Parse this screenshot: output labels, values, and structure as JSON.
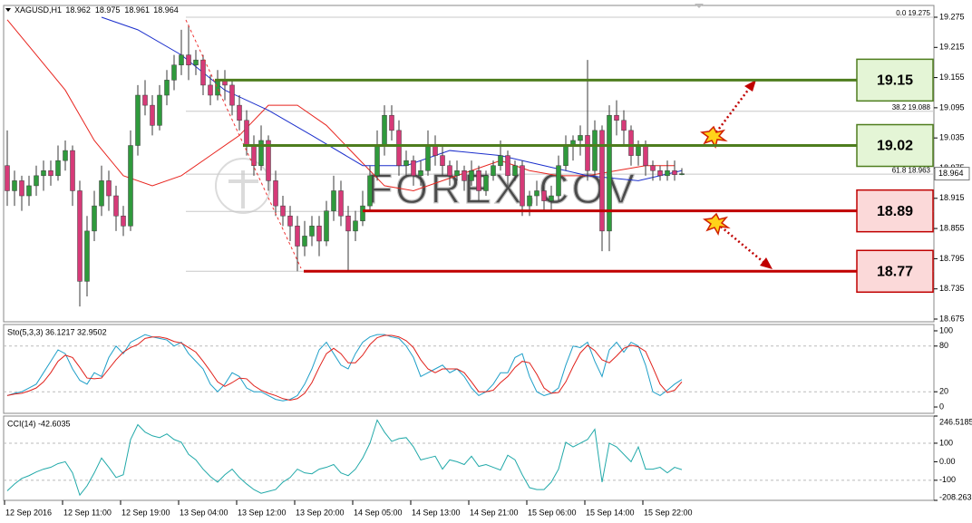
{
  "chart_data": [
    {
      "type": "candlestick",
      "symbol": "XAGUSD,H1",
      "header_values": [
        18.962,
        18.975,
        18.961,
        18.964
      ],
      "watermark": "FOREX.COV",
      "last_price": 18.964,
      "up_color": "#2f9a3c",
      "down_color": "#d63a78",
      "ylim": [
        18.6696,
        19.2984
      ],
      "yticks": [
        19.275,
        19.215,
        19.155,
        19.095,
        19.035,
        18.975,
        18.915,
        18.855,
        18.795,
        18.735,
        18.675
      ],
      "categories": [
        "12 Sep 2016",
        null,
        null,
        null,
        null,
        null,
        null,
        null,
        "12 Sep 11:00",
        null,
        null,
        null,
        null,
        null,
        null,
        null,
        "12 Sep 19:00",
        null,
        null,
        null,
        null,
        null,
        null,
        null,
        "13 Sep 04:00",
        null,
        null,
        null,
        null,
        null,
        null,
        null,
        "13 Sep 12:00",
        null,
        null,
        null,
        null,
        null,
        null,
        null,
        "13 Sep 20:00",
        null,
        null,
        null,
        null,
        null,
        null,
        null,
        "14 Sep 05:00",
        null,
        null,
        null,
        null,
        null,
        null,
        null,
        "14 Sep 13:00",
        null,
        null,
        null,
        null,
        null,
        null,
        null,
        "14 Sep 21:00",
        null,
        null,
        null,
        null,
        null,
        null,
        null,
        "15 Sep 06:00",
        null,
        null,
        null,
        null,
        null,
        null,
        null,
        "15 Sep 14:00",
        null,
        null,
        null,
        null,
        null,
        null,
        null,
        "15 Sep 22:00",
        null,
        null,
        null,
        null,
        null
      ],
      "ohlc": [
        [
          18.98,
          19.05,
          18.9,
          18.93
        ],
        [
          18.93,
          18.97,
          18.9,
          18.95
        ],
        [
          18.95,
          18.96,
          18.89,
          18.92
        ],
        [
          18.92,
          18.96,
          18.9,
          18.94
        ],
        [
          18.94,
          18.98,
          18.92,
          18.96
        ],
        [
          18.96,
          18.99,
          18.93,
          18.97
        ],
        [
          18.97,
          18.99,
          18.94,
          18.96
        ],
        [
          18.96,
          19.02,
          18.95,
          18.99
        ],
        [
          18.99,
          19.03,
          18.97,
          19.01
        ],
        [
          19.01,
          19.02,
          18.9,
          18.93
        ],
        [
          18.93,
          18.95,
          18.7,
          18.75
        ],
        [
          18.75,
          18.88,
          18.72,
          18.85
        ],
        [
          18.85,
          18.93,
          18.83,
          18.9
        ],
        [
          18.9,
          18.98,
          18.88,
          18.95
        ],
        [
          18.95,
          18.97,
          18.89,
          18.92
        ],
        [
          18.92,
          18.94,
          18.85,
          18.88
        ],
        [
          18.88,
          18.9,
          18.84,
          18.86
        ],
        [
          18.86,
          19.05,
          18.85,
          19.02
        ],
        [
          19.02,
          19.14,
          19.0,
          19.12
        ],
        [
          19.12,
          19.15,
          19.08,
          19.1
        ],
        [
          19.1,
          19.12,
          19.04,
          19.06
        ],
        [
          19.06,
          19.14,
          19.05,
          19.12
        ],
        [
          19.12,
          19.17,
          19.1,
          19.15
        ],
        [
          19.15,
          19.2,
          19.13,
          19.18
        ],
        [
          19.18,
          19.25,
          19.16,
          19.2
        ],
        [
          19.2,
          19.26,
          19.15,
          19.18
        ],
        [
          19.18,
          19.21,
          19.16,
          19.19
        ],
        [
          19.19,
          19.2,
          19.12,
          19.14
        ],
        [
          19.14,
          19.16,
          19.1,
          19.12
        ],
        [
          19.12,
          19.17,
          19.11,
          19.15
        ],
        [
          19.15,
          19.17,
          19.11,
          19.14
        ],
        [
          19.14,
          19.15,
          19.08,
          19.1
        ],
        [
          19.1,
          19.12,
          19.05,
          19.07
        ],
        [
          19.07,
          19.09,
          19.0,
          19.02
        ],
        [
          19.02,
          19.04,
          18.96,
          18.98
        ],
        [
          18.98,
          19.06,
          18.97,
          19.03
        ],
        [
          19.03,
          19.04,
          18.93,
          18.95
        ],
        [
          18.95,
          18.97,
          18.88,
          18.9
        ],
        [
          18.9,
          18.92,
          18.86,
          18.88
        ],
        [
          18.88,
          18.9,
          18.83,
          18.86
        ],
        [
          18.86,
          18.88,
          18.77,
          18.82
        ],
        [
          18.82,
          18.87,
          18.8,
          18.84
        ],
        [
          18.84,
          18.88,
          18.82,
          18.86
        ],
        [
          18.86,
          18.88,
          18.8,
          18.83
        ],
        [
          18.83,
          18.91,
          18.82,
          18.89
        ],
        [
          18.89,
          18.96,
          18.87,
          18.93
        ],
        [
          18.93,
          18.95,
          18.86,
          18.88
        ],
        [
          18.88,
          18.9,
          18.77,
          18.85
        ],
        [
          18.85,
          18.89,
          18.83,
          18.87
        ],
        [
          18.87,
          18.93,
          18.86,
          18.9
        ],
        [
          18.9,
          18.98,
          18.89,
          18.96
        ],
        [
          18.96,
          19.05,
          18.95,
          19.02
        ],
        [
          19.02,
          19.1,
          19.0,
          19.08
        ],
        [
          19.08,
          19.1,
          19.03,
          19.05
        ],
        [
          19.05,
          19.07,
          18.96,
          18.98
        ],
        [
          18.98,
          19.01,
          18.96,
          18.99
        ],
        [
          18.99,
          19.0,
          18.94,
          18.96
        ],
        [
          18.96,
          18.99,
          18.94,
          18.97
        ],
        [
          18.97,
          19.05,
          18.96,
          19.02
        ],
        [
          19.02,
          19.04,
          18.98,
          19.0
        ],
        [
          19.0,
          19.02,
          18.96,
          18.98
        ],
        [
          18.98,
          18.99,
          18.94,
          18.96
        ],
        [
          18.96,
          18.99,
          18.95,
          18.97
        ],
        [
          18.97,
          18.98,
          18.93,
          18.95
        ],
        [
          18.95,
          18.99,
          18.94,
          18.97
        ],
        [
          18.97,
          18.98,
          18.91,
          18.93
        ],
        [
          18.93,
          18.97,
          18.92,
          18.96
        ],
        [
          18.96,
          18.99,
          18.95,
          18.98
        ],
        [
          18.98,
          19.03,
          18.97,
          19.0
        ],
        [
          19.0,
          19.01,
          18.94,
          18.96
        ],
        [
          18.96,
          18.99,
          18.95,
          18.98
        ],
        [
          18.98,
          18.99,
          18.88,
          18.9
        ],
        [
          18.9,
          18.93,
          18.88,
          18.92
        ],
        [
          18.92,
          18.95,
          18.9,
          18.93
        ],
        [
          18.93,
          18.94,
          18.89,
          18.91
        ],
        [
          18.91,
          18.94,
          18.89,
          18.92
        ],
        [
          18.92,
          19.0,
          18.91,
          18.98
        ],
        [
          18.98,
          19.04,
          18.97,
          19.02
        ],
        [
          19.02,
          19.04,
          18.99,
          19.03
        ],
        [
          19.03,
          19.06,
          19.0,
          19.04
        ],
        [
          19.04,
          19.19,
          18.95,
          18.97
        ],
        [
          18.97,
          19.07,
          18.96,
          19.05
        ],
        [
          19.05,
          19.06,
          18.81,
          18.85
        ],
        [
          18.85,
          19.1,
          18.81,
          19.08
        ],
        [
          19.08,
          19.11,
          19.04,
          19.07
        ],
        [
          19.07,
          19.09,
          19.02,
          19.05
        ],
        [
          19.05,
          19.06,
          18.98,
          19.0
        ],
        [
          19.0,
          19.03,
          18.98,
          19.02
        ],
        [
          19.02,
          19.03,
          18.96,
          18.98
        ],
        [
          18.98,
          18.99,
          18.95,
          18.97
        ],
        [
          18.97,
          18.98,
          18.95,
          18.96
        ],
        [
          18.96,
          18.99,
          18.95,
          18.97
        ],
        [
          18.97,
          18.99,
          18.95,
          18.962
        ],
        [
          18.962,
          18.975,
          18.961,
          18.964
        ]
      ],
      "moving_averages": [
        {
          "color": "#e8251f",
          "x": [
            0,
            4,
            8,
            12,
            16,
            20,
            24,
            28,
            32,
            36,
            40,
            44,
            48,
            52,
            56,
            60,
            64,
            68,
            72,
            76,
            80,
            84,
            88,
            92
          ],
          "values": [
            19.27,
            19.2,
            19.13,
            19.03,
            18.96,
            18.94,
            18.96,
            19.0,
            19.04,
            19.1,
            19.1,
            19.06,
            19.0,
            18.94,
            18.93,
            18.95,
            18.97,
            18.99,
            18.97,
            18.96,
            18.96,
            18.97,
            18.98,
            18.98
          ]
        },
        {
          "color": "#1a2ecc",
          "x": [
            13,
            18,
            24,
            30,
            36,
            42,
            49,
            55,
            61,
            68,
            74,
            80,
            87,
            93
          ],
          "values": [
            19.275,
            19.25,
            19.2,
            19.13,
            19.09,
            19.04,
            18.98,
            18.98,
            19.01,
            19.0,
            18.98,
            18.96,
            18.95,
            18.97
          ]
        }
      ],
      "fib_levels": [
        {
          "label": "0.0  19.275",
          "value": 19.275
        },
        {
          "label": "38.2  19.088",
          "value": 19.088
        },
        {
          "label": "61.8  18.963",
          "value": 18.963
        }
      ],
      "fib_lines_unlabeled": [
        18.889,
        18.77
      ],
      "levels": [
        {
          "value": 19.15,
          "color": "#4e7d1e",
          "fill": "#e4f5d6"
        },
        {
          "value": 19.02,
          "color": "#4e7d1e",
          "fill": "#e4f5d6"
        },
        {
          "value": 18.89,
          "color": "#c00000",
          "fill": "#fbd9d9"
        },
        {
          "value": 18.77,
          "color": "#c00000",
          "fill": "#fbd9d9"
        }
      ]
    },
    {
      "type": "line",
      "title": "Sto(5,3,3) 36.1217 32.9502",
      "ylim": [
        -8.3,
        108.3
      ],
      "yticks": [
        100,
        80,
        20,
        0
      ],
      "levels": [
        80,
        20
      ],
      "series": [
        {
          "color": "#1f9fc8",
          "values": [
            15,
            18,
            20,
            25,
            30,
            45,
            60,
            75,
            70,
            50,
            35,
            30,
            45,
            40,
            65,
            80,
            70,
            85,
            90,
            95,
            92,
            90,
            88,
            80,
            85,
            70,
            60,
            50,
            30,
            20,
            30,
            45,
            40,
            25,
            20,
            20,
            15,
            10,
            8,
            10,
            15,
            30,
            50,
            75,
            85,
            70,
            55,
            50,
            70,
            85,
            92,
            95,
            95,
            92,
            90,
            80,
            65,
            40,
            45,
            50,
            55,
            45,
            50,
            40,
            25,
            15,
            20,
            30,
            45,
            45,
            65,
            70,
            40,
            20,
            15,
            18,
            25,
            55,
            80,
            78,
            85,
            60,
            40,
            75,
            85,
            72,
            85,
            80,
            55,
            20,
            15,
            22,
            30,
            36.1217
          ]
        },
        {
          "color": "#e0201a",
          "values": [
            15,
            17,
            18,
            21,
            25,
            33,
            45,
            60,
            68,
            65,
            52,
            38,
            37,
            38,
            50,
            62,
            72,
            78,
            82,
            90,
            92,
            92,
            90,
            86,
            84,
            78,
            72,
            60,
            47,
            33,
            27,
            32,
            38,
            37,
            28,
            22,
            18,
            15,
            11,
            9,
            11,
            18,
            32,
            52,
            70,
            77,
            70,
            58,
            58,
            68,
            82,
            91,
            94,
            94,
            92,
            87,
            78,
            62,
            50,
            45,
            50,
            50,
            50,
            45,
            33,
            20,
            20,
            22,
            32,
            40,
            52,
            60,
            58,
            43,
            25,
            18,
            19,
            33,
            53,
            71,
            81,
            74,
            62,
            58,
            67,
            77,
            81,
            79,
            73,
            52,
            30,
            19,
            22,
            32.9502
          ]
        }
      ]
    },
    {
      "type": "line",
      "title": "CCI(14) -42.6035",
      "ylim": [
        -208.2635,
        246.5185
      ],
      "yticks": [
        246.5185,
        100,
        {
          "value": 0,
          "label": "0.00"
        },
        -100,
        -208.2635
      ],
      "levels": [
        100,
        -100
      ],
      "series": [
        {
          "color": "#21a9a9",
          "values": [
            -157,
            -120,
            -90,
            -75,
            -55,
            -40,
            -30,
            -10,
            0,
            -60,
            -180,
            -130,
            -60,
            20,
            -30,
            -85,
            -70,
            120,
            200,
            160,
            140,
            130,
            150,
            120,
            105,
            40,
            10,
            -40,
            -80,
            -110,
            -70,
            -40,
            -85,
            -120,
            -150,
            -170,
            -160,
            -150,
            -110,
            -85,
            -40,
            -60,
            -65,
            -40,
            -30,
            -15,
            -60,
            -75,
            -40,
            20,
            100,
            225,
            160,
            110,
            125,
            130,
            80,
            10,
            20,
            30,
            -40,
            10,
            0,
            -15,
            30,
            -25,
            -15,
            -30,
            -45,
            35,
            10,
            -70,
            -140,
            -150,
            -150,
            -110,
            -40,
            105,
            80,
            100,
            120,
            175,
            -110,
            100,
            80,
            40,
            0,
            80,
            -40,
            -40,
            -30,
            -60,
            -30,
            -42.6035
          ]
        }
      ]
    }
  ]
}
